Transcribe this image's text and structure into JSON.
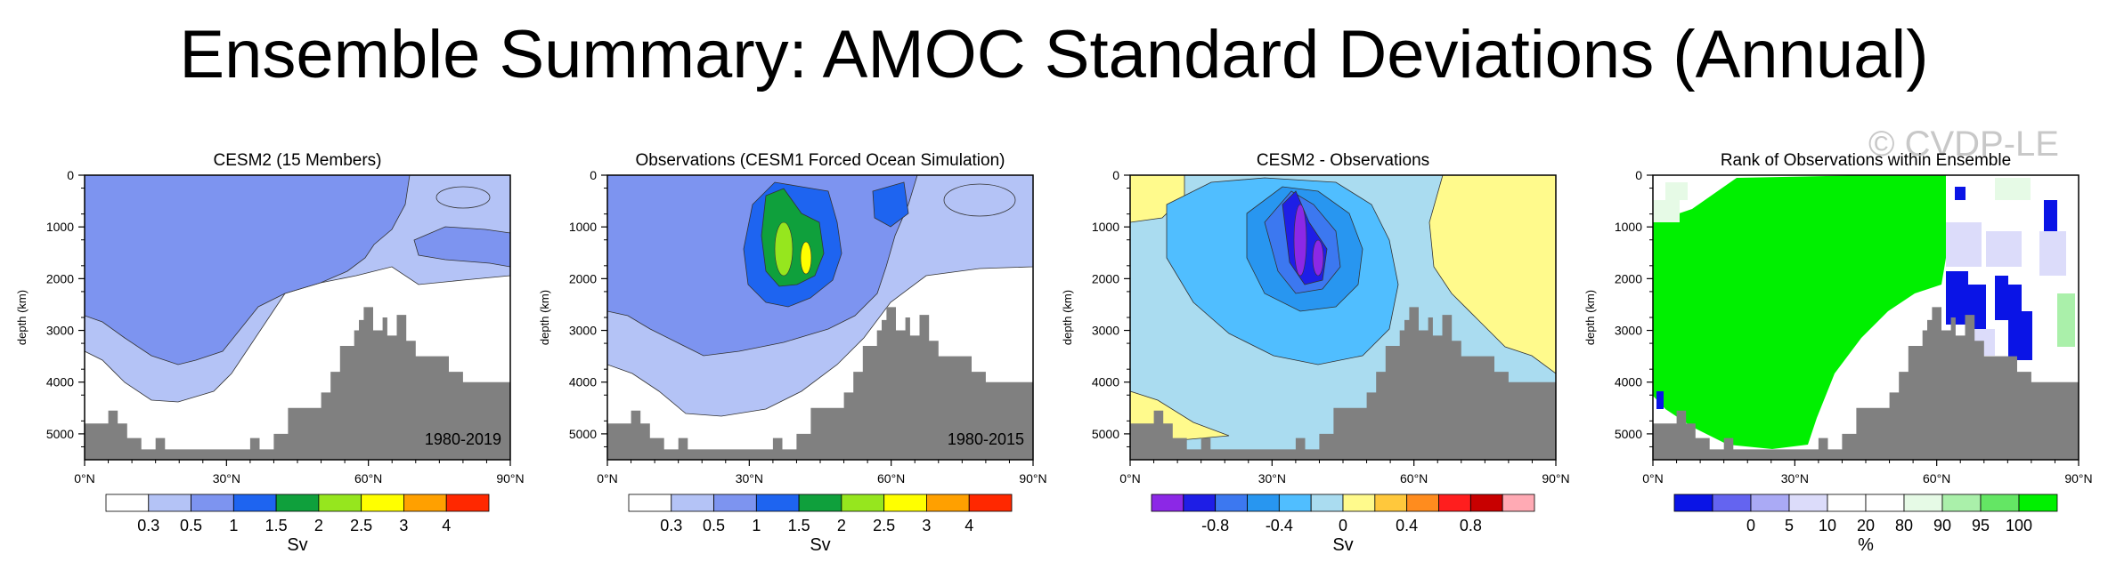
{
  "title": "Ensemble Summary: AMOC Standard Deviations (Annual)",
  "watermark": "© CVDP-LE",
  "chart_data": [
    {
      "type": "heatmap",
      "title": "CESM2 (15 Members)",
      "period": "1980-2019",
      "ylabel": "depth (km)",
      "xticks": [
        "0°N",
        "30°N",
        "60°N",
        "90°N"
      ],
      "yticks": [
        "0",
        "1000",
        "2000",
        "3000",
        "4000",
        "5000"
      ],
      "xlim": [
        0,
        90
      ],
      "ylim": [
        0,
        5500
      ],
      "colorbar": {
        "colors": [
          "#ffffff",
          "#b4c3f6",
          "#7d94f0",
          "#1e64f0",
          "#0fa03c",
          "#96e61e",
          "#ffff00",
          "#ffa000",
          "#ff2800"
        ],
        "labels": [
          "0.3",
          "0.5",
          "1",
          "1.5",
          "2",
          "2.5",
          "3",
          "4"
        ],
        "unit": "Sv"
      }
    },
    {
      "type": "heatmap",
      "title": "Observations (CESM1 Forced Ocean Simulation)",
      "period": "1980-2015",
      "ylabel": "depth (km)",
      "xticks": [
        "0°N",
        "30°N",
        "60°N",
        "90°N"
      ],
      "yticks": [
        "0",
        "1000",
        "2000",
        "3000",
        "4000",
        "5000"
      ],
      "xlim": [
        0,
        90
      ],
      "ylim": [
        0,
        5500
      ],
      "colorbar": {
        "colors": [
          "#ffffff",
          "#b4c3f6",
          "#7d94f0",
          "#1e64f0",
          "#0fa03c",
          "#96e61e",
          "#ffff00",
          "#ffa000",
          "#ff2800"
        ],
        "labels": [
          "0.3",
          "0.5",
          "1",
          "1.5",
          "2",
          "2.5",
          "3",
          "4"
        ],
        "unit": "Sv"
      }
    },
    {
      "type": "heatmap",
      "title": "CESM2 - Observations",
      "period": "",
      "ylabel": "depth (km)",
      "xticks": [
        "0°N",
        "30°N",
        "60°N",
        "90°N"
      ],
      "yticks": [
        "0",
        "1000",
        "2000",
        "3000",
        "4000",
        "5000"
      ],
      "xlim": [
        0,
        90
      ],
      "ylim": [
        0,
        5500
      ],
      "colorbar": {
        "colors": [
          "#8c28e6",
          "#1e1ee6",
          "#3c78f0",
          "#2896f0",
          "#50beff",
          "#aadcf0",
          "#fffa8c",
          "#ffc83c",
          "#ff8c1e",
          "#ff1e1e",
          "#c80000",
          "#ffaab4"
        ],
        "labels": [
          "-0.8",
          "-0.4",
          "0",
          "0.4",
          "0.8"
        ],
        "unit": "Sv"
      }
    },
    {
      "type": "heatmap",
      "title": "Rank of Observations within Ensemble",
      "period": "",
      "ylabel": "depth (km)",
      "xticks": [
        "0°N",
        "30°N",
        "60°N",
        "90°N"
      ],
      "yticks": [
        "0",
        "1000",
        "2000",
        "3000",
        "4000",
        "5000"
      ],
      "xlim": [
        0,
        90
      ],
      "ylim": [
        0,
        5500
      ],
      "colorbar": {
        "colors": [
          "#0a14e6",
          "#6464f0",
          "#aaaaf5",
          "#dcdcfa",
          "#ffffff",
          "#ffffff",
          "#e6fae6",
          "#aaf0aa",
          "#64e664",
          "#00f000"
        ],
        "labels": [
          "0",
          "5",
          "10",
          "20",
          "80",
          "90",
          "95",
          "100"
        ],
        "unit": "%"
      }
    }
  ]
}
